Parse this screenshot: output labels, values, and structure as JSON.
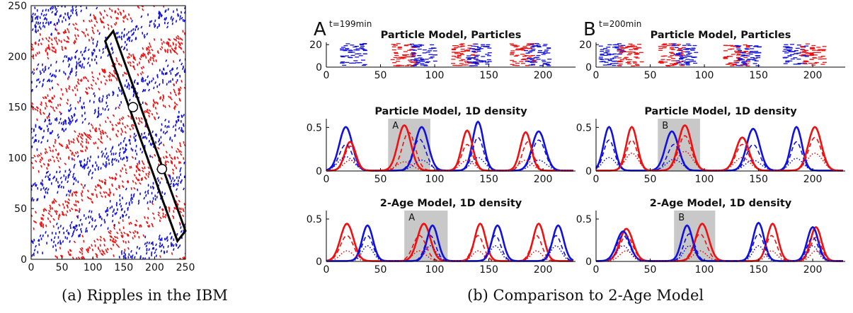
{
  "captions": {
    "a": "(a) Ripples in the IBM",
    "b": "(b) Comparison to 2-Age Model"
  },
  "panel_letters": {
    "A": "A",
    "B": "B"
  },
  "time_labels": {
    "A": "t=199min",
    "B": "t=200min"
  },
  "colors": {
    "red": "#ee1111",
    "blue": "#1111dd",
    "shade": "#c8c8c8",
    "black": "#000000"
  },
  "chart_data": [
    {
      "id": "ibm",
      "type": "scatter",
      "title": "",
      "xlim": [
        0,
        250
      ],
      "ylim": [
        0,
        250
      ],
      "xticks": [
        0,
        50,
        100,
        150,
        200,
        250
      ],
      "yticks": [
        0,
        50,
        100,
        150,
        200,
        250
      ],
      "description_of_marks": "dense short red and blue rod-shaped particles forming diagonal ripple bands",
      "band_centers_at_x0": [
        40,
        95,
        150,
        205,
        260
      ],
      "band_slope": 0.28,
      "rectangle_corners": [
        [
          120,
          215
        ],
        [
          133,
          225
        ],
        [
          250,
          28
        ],
        [
          237,
          18
        ]
      ],
      "circles": [
        [
          165,
          150
        ],
        [
          212,
          89
        ]
      ]
    },
    {
      "id": "A_particles",
      "type": "scatter",
      "title": "Particle Model, Particles",
      "xlim": [
        0,
        230
      ],
      "ylim": [
        0,
        22
      ],
      "xticks": [
        0,
        50,
        100,
        150,
        200
      ],
      "yticks": [
        0,
        20
      ],
      "clusters": [
        {
          "x": 25,
          "color": "blue"
        },
        {
          "x": 72,
          "color": "red"
        },
        {
          "x": 90,
          "color": "blue"
        },
        {
          "x": 128,
          "color": "red"
        },
        {
          "x": 140,
          "color": "blue"
        },
        {
          "x": 182,
          "color": "red"
        },
        {
          "x": 195,
          "color": "blue"
        }
      ]
    },
    {
      "id": "B_particles",
      "type": "scatter",
      "title": "Particle Model, Particles",
      "xlim": [
        0,
        230
      ],
      "ylim": [
        0,
        22
      ],
      "xticks": [
        0,
        50,
        100,
        150,
        200
      ],
      "yticks": [
        0,
        20
      ],
      "clusters": [
        {
          "x": 15,
          "color": "blue"
        },
        {
          "x": 32,
          "color": "red"
        },
        {
          "x": 70,
          "color": "red"
        },
        {
          "x": 82,
          "color": "blue"
        },
        {
          "x": 130,
          "color": "red"
        },
        {
          "x": 140,
          "color": "blue"
        },
        {
          "x": 185,
          "color": "blue"
        },
        {
          "x": 200,
          "color": "red"
        }
      ]
    },
    {
      "id": "A_pm_density",
      "type": "line",
      "title": "Particle Model, 1D density",
      "xlim": [
        0,
        230
      ],
      "ylim": [
        0,
        0.6
      ],
      "xticks": [
        0,
        50,
        100,
        150,
        200
      ],
      "yticks": [
        0,
        0.5
      ],
      "shade": {
        "x0": 57,
        "x1": 96,
        "label": "A"
      },
      "series": [
        {
          "color": "blue",
          "style": "solid",
          "peaks": [
            [
              18,
              0.5,
              6
            ],
            [
              88,
              0.5,
              6
            ],
            [
              140,
              0.56,
              5
            ],
            [
              196,
              0.45,
              6
            ]
          ]
        },
        {
          "color": "red",
          "style": "solid",
          "peaks": [
            [
              22,
              0.33,
              5
            ],
            [
              72,
              0.52,
              6
            ],
            [
              130,
              0.46,
              5
            ],
            [
              184,
              0.44,
              5
            ]
          ]
        },
        {
          "color": "blue",
          "style": "dashed",
          "peaks": [
            [
              18,
              0.3,
              6
            ],
            [
              86,
              0.36,
              6
            ],
            [
              140,
              0.38,
              5
            ],
            [
              196,
              0.35,
              6
            ]
          ]
        },
        {
          "color": "red",
          "style": "dashed",
          "peaks": [
            [
              22,
              0.28,
              5
            ],
            [
              76,
              0.44,
              6
            ],
            [
              130,
              0.3,
              5
            ],
            [
              186,
              0.33,
              5
            ]
          ]
        },
        {
          "color": "blue",
          "style": "dotted",
          "peaks": [
            [
              18,
              0.16,
              7
            ],
            [
              88,
              0.12,
              7
            ],
            [
              140,
              0.15,
              6
            ],
            [
              196,
              0.12,
              7
            ]
          ]
        },
        {
          "color": "red",
          "style": "dotted",
          "peaks": [
            [
              22,
              0.12,
              6
            ],
            [
              72,
              0.1,
              7
            ],
            [
              130,
              0.12,
              6
            ],
            [
              184,
              0.12,
              6
            ]
          ]
        }
      ]
    },
    {
      "id": "B_pm_density",
      "type": "line",
      "title": "Particle Model, 1D density",
      "xlim": [
        0,
        230
      ],
      "ylim": [
        0,
        0.6
      ],
      "xticks": [
        0,
        50,
        100,
        150,
        200
      ],
      "yticks": [
        0,
        0.5
      ],
      "shade": {
        "x0": 57,
        "x1": 96,
        "label": "B"
      },
      "series": [
        {
          "color": "blue",
          "style": "solid",
          "peaks": [
            [
              12,
              0.5,
              5
            ],
            [
              70,
              0.45,
              6
            ],
            [
              145,
              0.48,
              6
            ],
            [
              185,
              0.5,
              5
            ]
          ]
        },
        {
          "color": "red",
          "style": "solid",
          "peaks": [
            [
              33,
              0.5,
              5
            ],
            [
              82,
              0.52,
              6
            ],
            [
              135,
              0.38,
              6
            ],
            [
              202,
              0.5,
              6
            ]
          ]
        },
        {
          "color": "blue",
          "style": "dashed",
          "peaks": [
            [
              12,
              0.35,
              5
            ],
            [
              72,
              0.3,
              6
            ],
            [
              145,
              0.3,
              6
            ],
            [
              185,
              0.33,
              5
            ]
          ]
        },
        {
          "color": "red",
          "style": "dashed",
          "peaks": [
            [
              33,
              0.35,
              5
            ],
            [
              82,
              0.4,
              6
            ],
            [
              135,
              0.3,
              6
            ],
            [
              202,
              0.38,
              6
            ]
          ]
        },
        {
          "color": "blue",
          "style": "dotted",
          "peaks": [
            [
              12,
              0.15,
              6
            ],
            [
              72,
              0.13,
              7
            ],
            [
              145,
              0.12,
              7
            ],
            [
              185,
              0.14,
              6
            ]
          ]
        },
        {
          "color": "red",
          "style": "dotted",
          "peaks": [
            [
              33,
              0.2,
              6
            ],
            [
              82,
              0.22,
              7
            ],
            [
              135,
              0.15,
              7
            ],
            [
              202,
              0.2,
              7
            ]
          ]
        }
      ]
    },
    {
      "id": "A_2age_density",
      "type": "line",
      "title": "2-Age Model, 1D density",
      "xlim": [
        0,
        230
      ],
      "ylim": [
        0,
        0.6
      ],
      "xticks": [
        0,
        50,
        100,
        150,
        200
      ],
      "yticks": [
        0,
        0.5
      ],
      "shade": {
        "x0": 72,
        "x1": 112,
        "label": "A"
      },
      "series": [
        {
          "color": "red",
          "style": "solid",
          "peaks": [
            [
              19,
              0.44,
              6
            ],
            [
              90,
              0.44,
              6
            ],
            [
              142,
              0.44,
              5
            ],
            [
              196,
              0.44,
              5
            ]
          ]
        },
        {
          "color": "blue",
          "style": "solid",
          "peaks": [
            [
              38,
              0.42,
              5
            ],
            [
              98,
              0.42,
              5
            ],
            [
              158,
              0.42,
              5
            ],
            [
              214,
              0.42,
              5
            ]
          ]
        },
        {
          "color": "red",
          "style": "dashed",
          "peaks": [
            [
              19,
              0.3,
              6
            ],
            [
              86,
              0.3,
              6
            ],
            [
              140,
              0.3,
              5
            ],
            [
              194,
              0.3,
              5
            ]
          ]
        },
        {
          "color": "blue",
          "style": "dashed",
          "peaks": [
            [
              38,
              0.3,
              5
            ],
            [
              96,
              0.3,
              5
            ],
            [
              156,
              0.3,
              5
            ],
            [
              212,
              0.3,
              5
            ]
          ]
        },
        {
          "color": "red",
          "style": "dotted",
          "peaks": [
            [
              19,
              0.12,
              6
            ],
            [
              86,
              0.12,
              6
            ],
            [
              140,
              0.12,
              5
            ],
            [
              194,
              0.12,
              5
            ]
          ]
        },
        {
          "color": "blue",
          "style": "dotted",
          "peaks": [
            [
              38,
              0.18,
              5
            ],
            [
              96,
              0.18,
              5
            ],
            [
              156,
              0.18,
              5
            ],
            [
              212,
              0.18,
              5
            ]
          ]
        }
      ]
    },
    {
      "id": "B_2age_density",
      "type": "line",
      "title": "2-Age Model, 1D density",
      "xlim": [
        0,
        230
      ],
      "ylim": [
        0,
        0.6
      ],
      "xticks": [
        0,
        50,
        100,
        150,
        200
      ],
      "yticks": [
        0,
        0.5
      ],
      "shade": {
        "x0": 72,
        "x1": 110,
        "label": "B"
      },
      "series": [
        {
          "color": "red",
          "style": "solid",
          "peaks": [
            [
              28,
              0.38,
              6
            ],
            [
              98,
              0.44,
              6
            ],
            [
              163,
              0.44,
              5
            ],
            [
              203,
              0.4,
              5
            ]
          ]
        },
        {
          "color": "blue",
          "style": "solid",
          "peaks": [
            [
              25,
              0.35,
              6
            ],
            [
              84,
              0.42,
              5
            ],
            [
              150,
              0.45,
              5
            ],
            [
              200,
              0.4,
              5
            ]
          ]
        },
        {
          "color": "red",
          "style": "dashed",
          "peaks": [
            [
              28,
              0.3,
              6
            ],
            [
              96,
              0.32,
              6
            ],
            [
              162,
              0.3,
              5
            ],
            [
              203,
              0.28,
              5
            ]
          ]
        },
        {
          "color": "blue",
          "style": "dashed",
          "peaks": [
            [
              25,
              0.3,
              6
            ],
            [
              86,
              0.32,
              5
            ],
            [
              150,
              0.32,
              5
            ],
            [
              200,
              0.28,
              5
            ]
          ]
        },
        {
          "color": "red",
          "style": "dotted",
          "peaks": [
            [
              28,
              0.12,
              6
            ],
            [
              96,
              0.12,
              6
            ],
            [
              162,
              0.12,
              5
            ],
            [
              203,
              0.12,
              5
            ]
          ]
        },
        {
          "color": "blue",
          "style": "dotted",
          "peaks": [
            [
              25,
              0.18,
              6
            ],
            [
              86,
              0.18,
              5
            ],
            [
              150,
              0.18,
              5
            ],
            [
              200,
              0.18,
              5
            ]
          ]
        }
      ]
    }
  ]
}
